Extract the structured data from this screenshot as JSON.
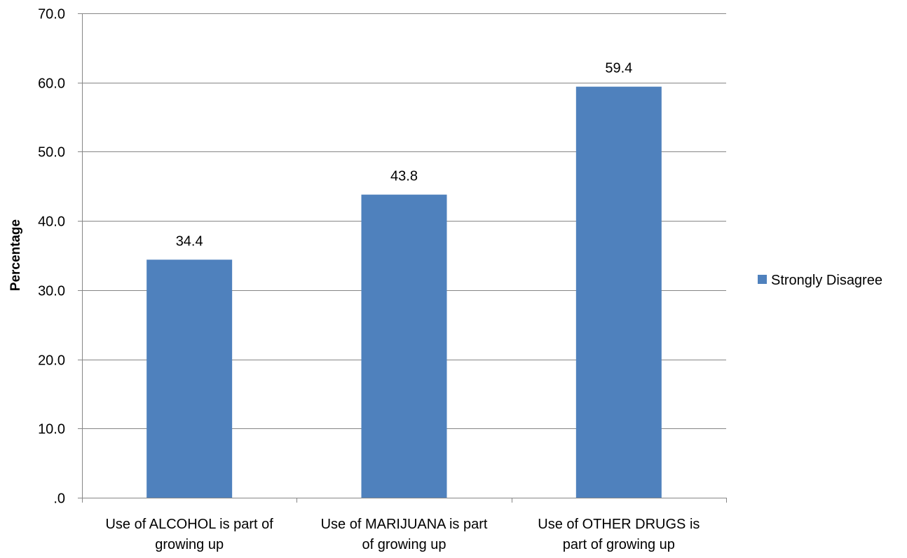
{
  "chart_data": {
    "type": "bar",
    "categories": [
      [
        "Use of ALCOHOL is part of",
        "growing up"
      ],
      [
        "Use of MARIJUANA is part",
        "of growing up"
      ],
      [
        "Use of OTHER DRUGS is",
        "part of growing up"
      ]
    ],
    "series": [
      {
        "name": "Strongly Disagree",
        "values": [
          34.4,
          43.8,
          59.4
        ],
        "color": "#4F81BD"
      }
    ],
    "data_labels": [
      "34.4",
      "43.8",
      "59.4"
    ],
    "ylabel": "Percentage",
    "xlabel": "",
    "ylim": [
      0,
      70
    ],
    "yticks": [
      0,
      10,
      20,
      30,
      40,
      50,
      60,
      70
    ],
    "ytick_labels": [
      ".0",
      "10.0",
      "20.0",
      "30.0",
      "40.0",
      "50.0",
      "60.0",
      "70.0"
    ],
    "grid": true,
    "legend_position": "right",
    "colors": {
      "grid": "#868686",
      "axis": "#868686",
      "text": "#000000"
    }
  }
}
